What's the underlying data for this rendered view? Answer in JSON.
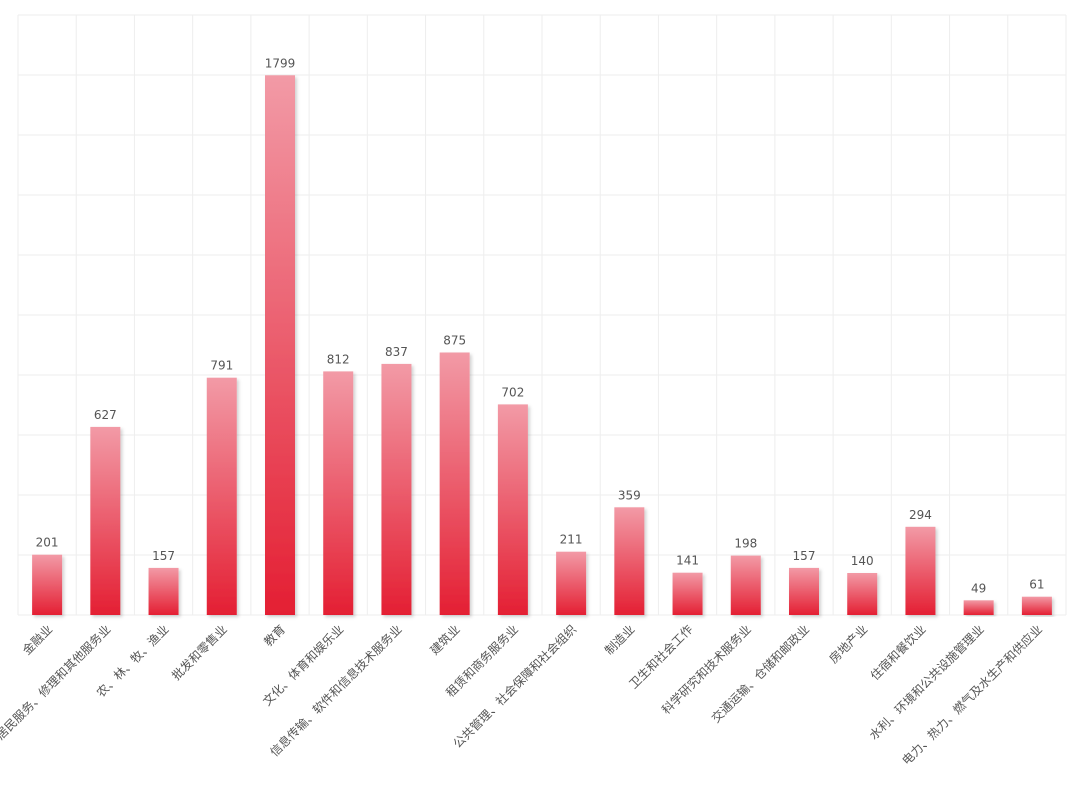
{
  "chart_data": {
    "type": "bar",
    "title": "",
    "xlabel": "",
    "ylabel": "",
    "ylim": [
      0,
      2000
    ],
    "y_grid_step": 200,
    "grid": true,
    "legend": "none",
    "bar_color_top": "#f29aa6",
    "bar_color_bottom": "#e41f33",
    "grid_color": "#eeeeee",
    "label_color": "#555555",
    "categories": [
      "金融业",
      "居民服务、修理和其他服务业",
      "农、林、牧、渔业",
      "批发和零售业",
      "教育",
      "文化、体育和娱乐业",
      "信息传输、软件和信息技术服务业",
      "建筑业",
      "租赁和商务服务业",
      "公共管理、社会保障和社会组织",
      "制造业",
      "卫生和社会工作",
      "科学研究和技术服务业",
      "交通运输、仓储和邮政业",
      "房地产业",
      "住宿和餐饮业",
      "水利、环境和公共设施管理业",
      "电力、热力、燃气及水生产和供应业"
    ],
    "values": [
      201,
      627,
      157,
      791,
      1799,
      812,
      837,
      875,
      702,
      211,
      359,
      141,
      198,
      157,
      140,
      294,
      49,
      61
    ]
  }
}
